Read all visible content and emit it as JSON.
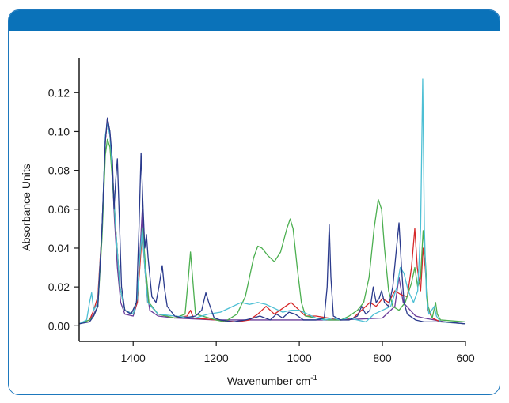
{
  "colors": {
    "frame_border": "#1d78bd",
    "header_bar": "#0a72b9",
    "axis": "#1a1a1a"
  },
  "chart_data": {
    "type": "line",
    "title": "",
    "xlabel": "Wavenumber cm",
    "xlabel_superscript": "-1",
    "ylabel": "Absorbance Units",
    "xlim": [
      1530,
      600
    ],
    "x_reversed": true,
    "ylim": [
      -0.008,
      0.138
    ],
    "grid": false,
    "legend": "none",
    "x_ticks": [
      {
        "value": 1400,
        "label": "1400"
      },
      {
        "value": 1200,
        "label": "1200"
      },
      {
        "value": 1000,
        "label": "1000"
      },
      {
        "value": 800,
        "label": "800"
      },
      {
        "value": 600,
        "label": "600"
      }
    ],
    "y_ticks": [
      {
        "value": 0.0,
        "label": "0.00"
      },
      {
        "value": 0.02,
        "label": "0.02"
      },
      {
        "value": 0.04,
        "label": "0.04"
      },
      {
        "value": 0.06,
        "label": "0.06"
      },
      {
        "value": 0.08,
        "label": "0.08"
      },
      {
        "value": 0.1,
        "label": "0.10"
      },
      {
        "value": 0.12,
        "label": "0.12"
      }
    ],
    "series": [
      {
        "color": "#6a3d9a",
        "points": [
          [
            1530,
            0.001
          ],
          [
            1505,
            0.003
          ],
          [
            1495,
            0.006
          ],
          [
            1485,
            0.01
          ],
          [
            1475,
            0.05
          ],
          [
            1467,
            0.095
          ],
          [
            1462,
            0.107
          ],
          [
            1456,
            0.1
          ],
          [
            1450,
            0.078
          ],
          [
            1445,
            0.055
          ],
          [
            1438,
            0.03
          ],
          [
            1430,
            0.012
          ],
          [
            1420,
            0.006
          ],
          [
            1400,
            0.005
          ],
          [
            1390,
            0.012
          ],
          [
            1383,
            0.04
          ],
          [
            1378,
            0.06
          ],
          [
            1374,
            0.04
          ],
          [
            1368,
            0.02
          ],
          [
            1360,
            0.008
          ],
          [
            1340,
            0.005
          ],
          [
            1300,
            0.004
          ],
          [
            1200,
            0.003
          ],
          [
            1100,
            0.003
          ],
          [
            1000,
            0.003
          ],
          [
            900,
            0.003
          ],
          [
            800,
            0.004
          ],
          [
            770,
            0.01
          ],
          [
            760,
            0.025
          ],
          [
            750,
            0.012
          ],
          [
            720,
            0.005
          ],
          [
            700,
            0.004
          ],
          [
            650,
            0.002
          ],
          [
            600,
            0.001
          ]
        ]
      },
      {
        "color": "#d62728",
        "points": [
          [
            1530,
            0.001
          ],
          [
            1505,
            0.003
          ],
          [
            1495,
            0.008
          ],
          [
            1485,
            0.015
          ],
          [
            1475,
            0.05
          ],
          [
            1467,
            0.095
          ],
          [
            1462,
            0.106
          ],
          [
            1456,
            0.098
          ],
          [
            1450,
            0.08
          ],
          [
            1442,
            0.05
          ],
          [
            1432,
            0.02
          ],
          [
            1420,
            0.008
          ],
          [
            1400,
            0.006
          ],
          [
            1390,
            0.012
          ],
          [
            1384,
            0.03
          ],
          [
            1378,
            0.048
          ],
          [
            1372,
            0.03
          ],
          [
            1365,
            0.012
          ],
          [
            1340,
            0.006
          ],
          [
            1300,
            0.004
          ],
          [
            1270,
            0.005
          ],
          [
            1262,
            0.008
          ],
          [
            1255,
            0.004
          ],
          [
            1200,
            0.003
          ],
          [
            1150,
            0.002
          ],
          [
            1120,
            0.003
          ],
          [
            1100,
            0.006
          ],
          [
            1080,
            0.01
          ],
          [
            1060,
            0.006
          ],
          [
            1040,
            0.009
          ],
          [
            1020,
            0.012
          ],
          [
            1000,
            0.008
          ],
          [
            985,
            0.005
          ],
          [
            960,
            0.005
          ],
          [
            930,
            0.004
          ],
          [
            900,
            0.003
          ],
          [
            870,
            0.004
          ],
          [
            845,
            0.009
          ],
          [
            830,
            0.012
          ],
          [
            815,
            0.01
          ],
          [
            800,
            0.014
          ],
          [
            785,
            0.012
          ],
          [
            770,
            0.018
          ],
          [
            755,
            0.016
          ],
          [
            740,
            0.015
          ],
          [
            730,
            0.03
          ],
          [
            722,
            0.05
          ],
          [
            716,
            0.03
          ],
          [
            708,
            0.018
          ],
          [
            702,
            0.04
          ],
          [
            697,
            0.03
          ],
          [
            690,
            0.008
          ],
          [
            680,
            0.004
          ],
          [
            660,
            0.002
          ],
          [
            600,
            0.001
          ]
        ]
      },
      {
        "color": "#4caf50",
        "points": [
          [
            1530,
            0.001
          ],
          [
            1505,
            0.003
          ],
          [
            1495,
            0.005
          ],
          [
            1485,
            0.01
          ],
          [
            1475,
            0.045
          ],
          [
            1467,
            0.088
          ],
          [
            1462,
            0.096
          ],
          [
            1456,
            0.092
          ],
          [
            1450,
            0.075
          ],
          [
            1442,
            0.05
          ],
          [
            1432,
            0.02
          ],
          [
            1420,
            0.008
          ],
          [
            1400,
            0.006
          ],
          [
            1390,
            0.014
          ],
          [
            1384,
            0.035
          ],
          [
            1377,
            0.05
          ],
          [
            1370,
            0.03
          ],
          [
            1362,
            0.012
          ],
          [
            1340,
            0.006
          ],
          [
            1300,
            0.004
          ],
          [
            1275,
            0.006
          ],
          [
            1267,
            0.025
          ],
          [
            1262,
            0.038
          ],
          [
            1257,
            0.025
          ],
          [
            1250,
            0.006
          ],
          [
            1200,
            0.003
          ],
          [
            1180,
            0.002
          ],
          [
            1150,
            0.006
          ],
          [
            1130,
            0.015
          ],
          [
            1110,
            0.035
          ],
          [
            1100,
            0.041
          ],
          [
            1090,
            0.04
          ],
          [
            1075,
            0.036
          ],
          [
            1060,
            0.033
          ],
          [
            1045,
            0.038
          ],
          [
            1030,
            0.05
          ],
          [
            1022,
            0.055
          ],
          [
            1015,
            0.05
          ],
          [
            1005,
            0.03
          ],
          [
            995,
            0.012
          ],
          [
            985,
            0.005
          ],
          [
            960,
            0.004
          ],
          [
            930,
            0.003
          ],
          [
            900,
            0.003
          ],
          [
            880,
            0.005
          ],
          [
            860,
            0.008
          ],
          [
            845,
            0.012
          ],
          [
            832,
            0.025
          ],
          [
            820,
            0.05
          ],
          [
            810,
            0.065
          ],
          [
            802,
            0.06
          ],
          [
            795,
            0.04
          ],
          [
            785,
            0.018
          ],
          [
            775,
            0.01
          ],
          [
            760,
            0.008
          ],
          [
            745,
            0.012
          ],
          [
            730,
            0.022
          ],
          [
            722,
            0.03
          ],
          [
            715,
            0.02
          ],
          [
            708,
            0.025
          ],
          [
            702,
            0.049
          ],
          [
            697,
            0.035
          ],
          [
            690,
            0.01
          ],
          [
            680,
            0.004
          ],
          [
            672,
            0.012
          ],
          [
            668,
            0.006
          ],
          [
            660,
            0.003
          ],
          [
            600,
            0.002
          ]
        ]
      },
      {
        "color": "#4dbfd4",
        "points": [
          [
            1530,
            0.001
          ],
          [
            1512,
            0.003
          ],
          [
            1505,
            0.012
          ],
          [
            1500,
            0.017
          ],
          [
            1495,
            0.008
          ],
          [
            1485,
            0.012
          ],
          [
            1475,
            0.05
          ],
          [
            1467,
            0.098
          ],
          [
            1462,
            0.104
          ],
          [
            1456,
            0.098
          ],
          [
            1450,
            0.08
          ],
          [
            1442,
            0.05
          ],
          [
            1432,
            0.02
          ],
          [
            1420,
            0.008
          ],
          [
            1400,
            0.006
          ],
          [
            1390,
            0.014
          ],
          [
            1384,
            0.035
          ],
          [
            1378,
            0.05
          ],
          [
            1372,
            0.03
          ],
          [
            1365,
            0.012
          ],
          [
            1340,
            0.006
          ],
          [
            1300,
            0.005
          ],
          [
            1250,
            0.004
          ],
          [
            1220,
            0.006
          ],
          [
            1190,
            0.007
          ],
          [
            1160,
            0.01
          ],
          [
            1140,
            0.012
          ],
          [
            1120,
            0.011
          ],
          [
            1100,
            0.012
          ],
          [
            1080,
            0.011
          ],
          [
            1060,
            0.009
          ],
          [
            1040,
            0.007
          ],
          [
            1020,
            0.008
          ],
          [
            1000,
            0.008
          ],
          [
            980,
            0.006
          ],
          [
            960,
            0.004
          ],
          [
            940,
            0.003
          ],
          [
            920,
            0.004
          ],
          [
            900,
            0.003
          ],
          [
            880,
            0.004
          ],
          [
            860,
            0.003
          ],
          [
            840,
            0.002
          ],
          [
            820,
            0.006
          ],
          [
            800,
            0.008
          ],
          [
            780,
            0.01
          ],
          [
            765,
            0.02
          ],
          [
            757,
            0.03
          ],
          [
            748,
            0.027
          ],
          [
            738,
            0.018
          ],
          [
            725,
            0.012
          ],
          [
            715,
            0.018
          ],
          [
            708,
            0.05
          ],
          [
            703,
            0.127
          ],
          [
            699,
            0.05
          ],
          [
            694,
            0.015
          ],
          [
            688,
            0.006
          ],
          [
            675,
            0.01
          ],
          [
            670,
            0.005
          ],
          [
            660,
            0.002
          ],
          [
            600,
            0.001
          ]
        ]
      },
      {
        "color": "#2a3a8c",
        "points": [
          [
            1530,
            0.001
          ],
          [
            1505,
            0.002
          ],
          [
            1495,
            0.005
          ],
          [
            1485,
            0.01
          ],
          [
            1475,
            0.05
          ],
          [
            1467,
            0.095
          ],
          [
            1462,
            0.107
          ],
          [
            1456,
            0.1
          ],
          [
            1450,
            0.085
          ],
          [
            1446,
            0.06
          ],
          [
            1442,
            0.075
          ],
          [
            1438,
            0.086
          ],
          [
            1434,
            0.06
          ],
          [
            1428,
            0.02
          ],
          [
            1420,
            0.008
          ],
          [
            1405,
            0.006
          ],
          [
            1392,
            0.012
          ],
          [
            1386,
            0.05
          ],
          [
            1381,
            0.089
          ],
          [
            1376,
            0.06
          ],
          [
            1372,
            0.04
          ],
          [
            1368,
            0.047
          ],
          [
            1364,
            0.035
          ],
          [
            1355,
            0.015
          ],
          [
            1345,
            0.012
          ],
          [
            1338,
            0.02
          ],
          [
            1330,
            0.031
          ],
          [
            1325,
            0.02
          ],
          [
            1318,
            0.01
          ],
          [
            1300,
            0.005
          ],
          [
            1280,
            0.004
          ],
          [
            1250,
            0.005
          ],
          [
            1235,
            0.008
          ],
          [
            1225,
            0.017
          ],
          [
            1218,
            0.012
          ],
          [
            1205,
            0.004
          ],
          [
            1190,
            0.003
          ],
          [
            1160,
            0.002
          ],
          [
            1130,
            0.003
          ],
          [
            1110,
            0.004
          ],
          [
            1095,
            0.005
          ],
          [
            1070,
            0.003
          ],
          [
            1055,
            0.006
          ],
          [
            1040,
            0.004
          ],
          [
            1025,
            0.007
          ],
          [
            1010,
            0.006
          ],
          [
            990,
            0.003
          ],
          [
            960,
            0.003
          ],
          [
            940,
            0.004
          ],
          [
            933,
            0.02
          ],
          [
            928,
            0.052
          ],
          [
            924,
            0.025
          ],
          [
            918,
            0.005
          ],
          [
            900,
            0.003
          ],
          [
            880,
            0.003
          ],
          [
            860,
            0.005
          ],
          [
            850,
            0.01
          ],
          [
            840,
            0.006
          ],
          [
            830,
            0.008
          ],
          [
            822,
            0.02
          ],
          [
            815,
            0.012
          ],
          [
            808,
            0.014
          ],
          [
            802,
            0.018
          ],
          [
            795,
            0.012
          ],
          [
            785,
            0.01
          ],
          [
            775,
            0.02
          ],
          [
            766,
            0.04
          ],
          [
            760,
            0.053
          ],
          [
            754,
            0.03
          ],
          [
            748,
            0.012
          ],
          [
            740,
            0.006
          ],
          [
            720,
            0.003
          ],
          [
            700,
            0.002
          ],
          [
            650,
            0.002
          ],
          [
            600,
            0.001
          ]
        ]
      }
    ]
  }
}
